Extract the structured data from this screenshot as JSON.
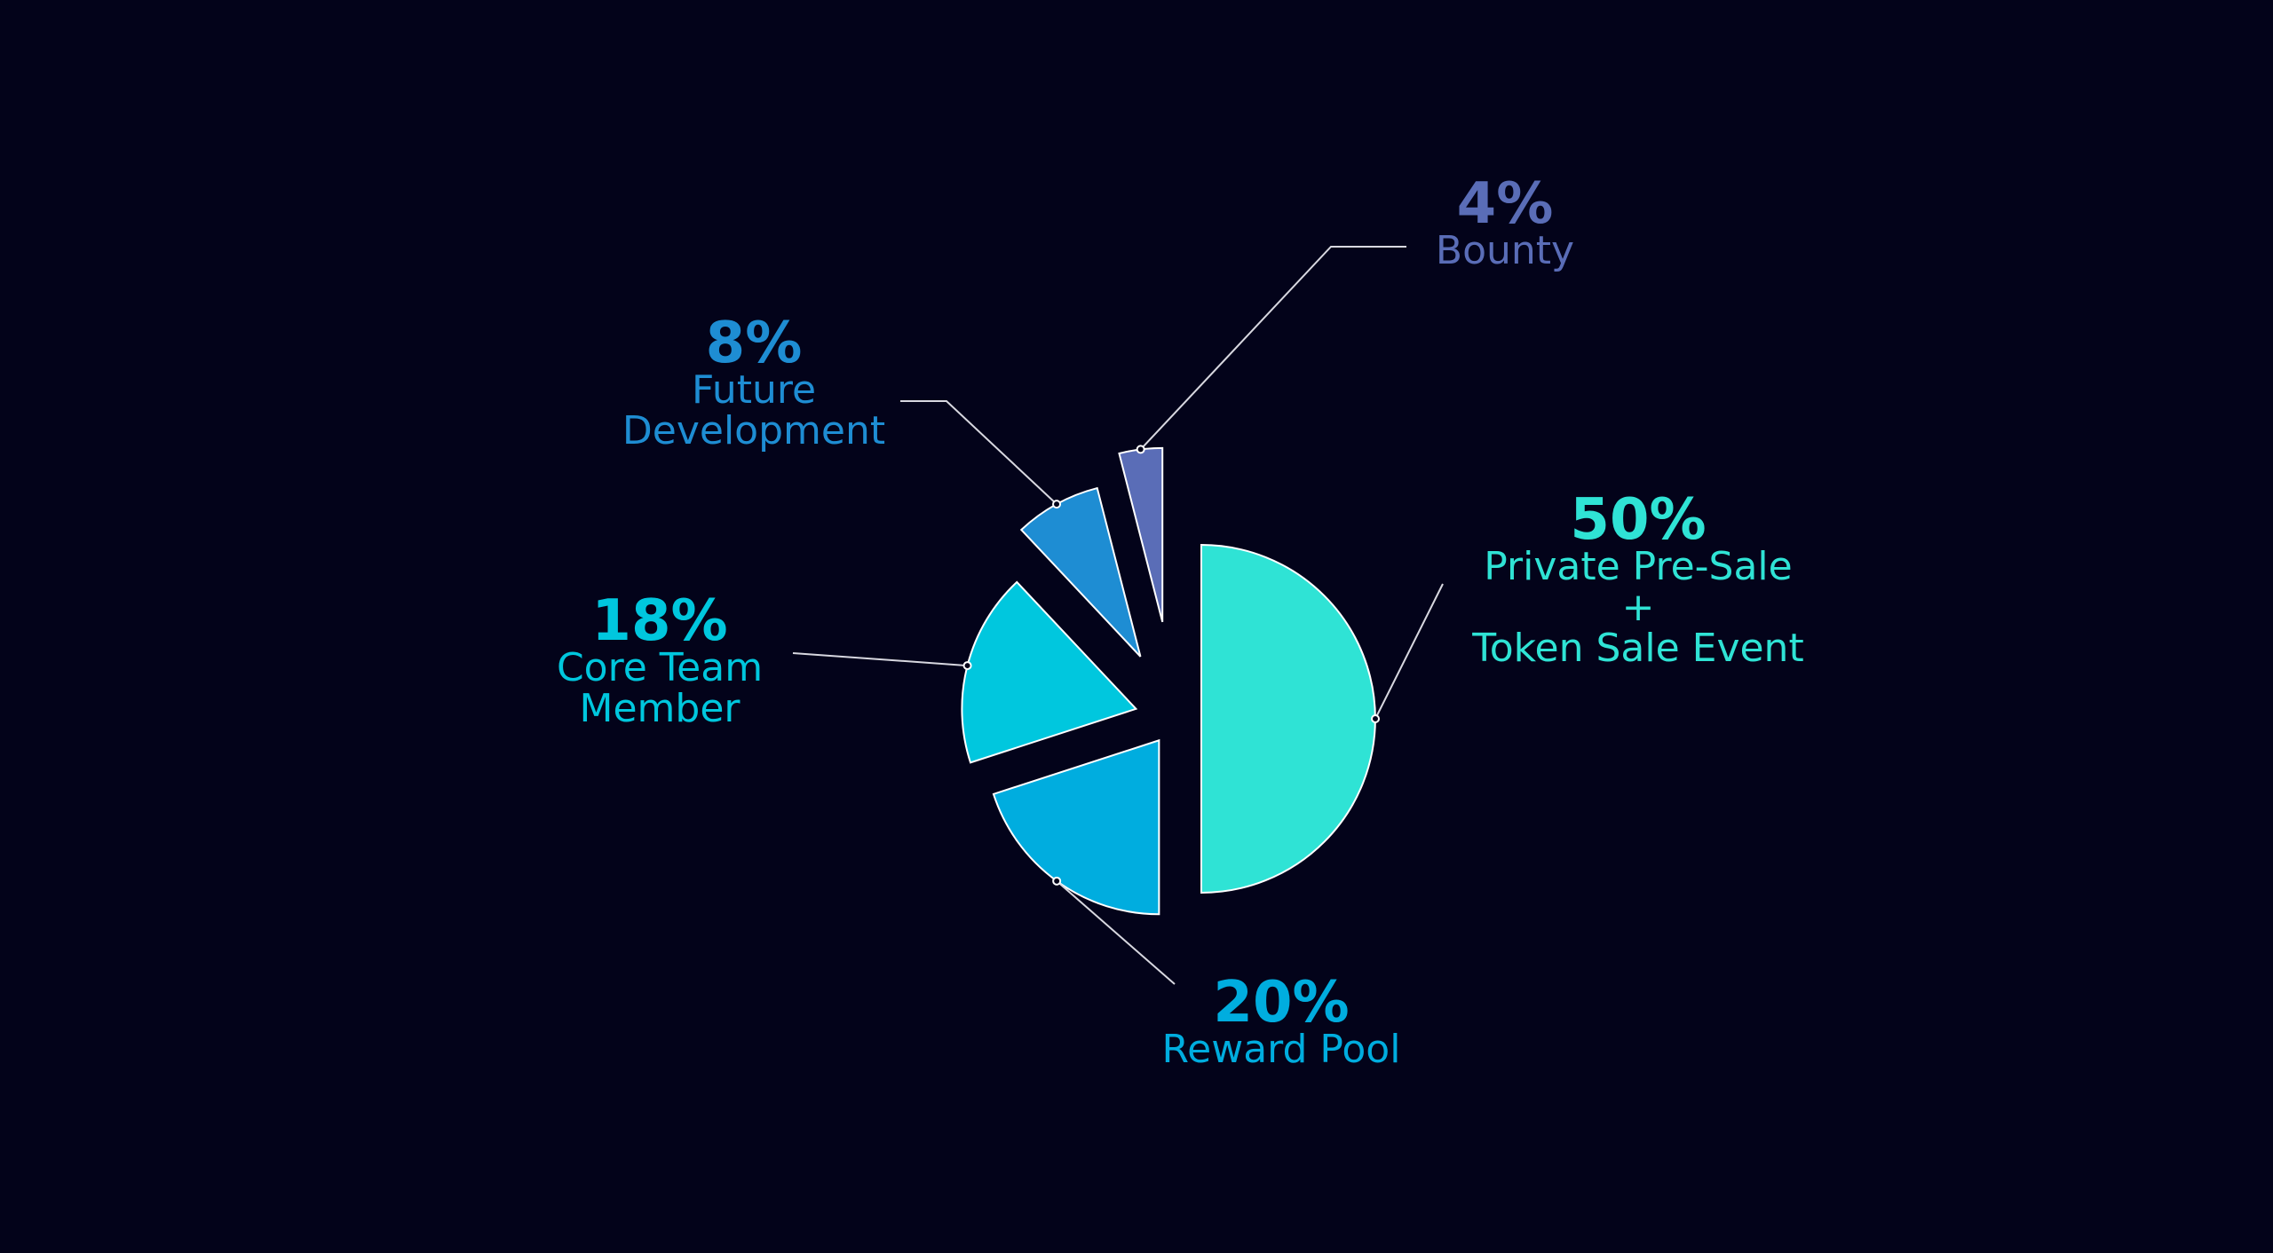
{
  "chart_data": {
    "type": "pie",
    "categories": [
      "Private Pre-Sale\n+\nToken Sale Event",
      "Reward Pool",
      "Core Team\nMember",
      "Future\nDevelopment",
      "Bounty"
    ],
    "values": [
      50,
      20,
      18,
      8,
      4
    ],
    "value_labels": [
      "50%",
      "20%",
      "18%",
      "8%",
      "4%"
    ],
    "colors": [
      "#2fe3d5",
      "#00addf",
      "#00c7de",
      "#1e8dd3",
      "#5a6db7"
    ]
  }
}
